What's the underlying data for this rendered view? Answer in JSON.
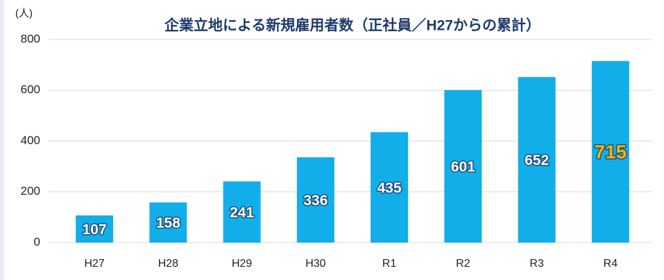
{
  "chart_data": {
    "type": "bar",
    "title": "企業立地による新規雇用者数（正社員／H27からの累計）",
    "y_label": "(人)",
    "categories": [
      "H27",
      "H28",
      "H29",
      "H30",
      "R1",
      "R2",
      "R3",
      "R4"
    ],
    "values": [
      107,
      158,
      241,
      336,
      435,
      601,
      652,
      715
    ],
    "color": "#12aeea",
    "value_label_color": "#ffffff",
    "highlight": {
      "index": 7,
      "color": "#f7b500"
    },
    "ylim": [
      0,
      800
    ],
    "yticks": [
      0,
      200,
      400,
      600,
      800
    ],
    "grid": true
  }
}
